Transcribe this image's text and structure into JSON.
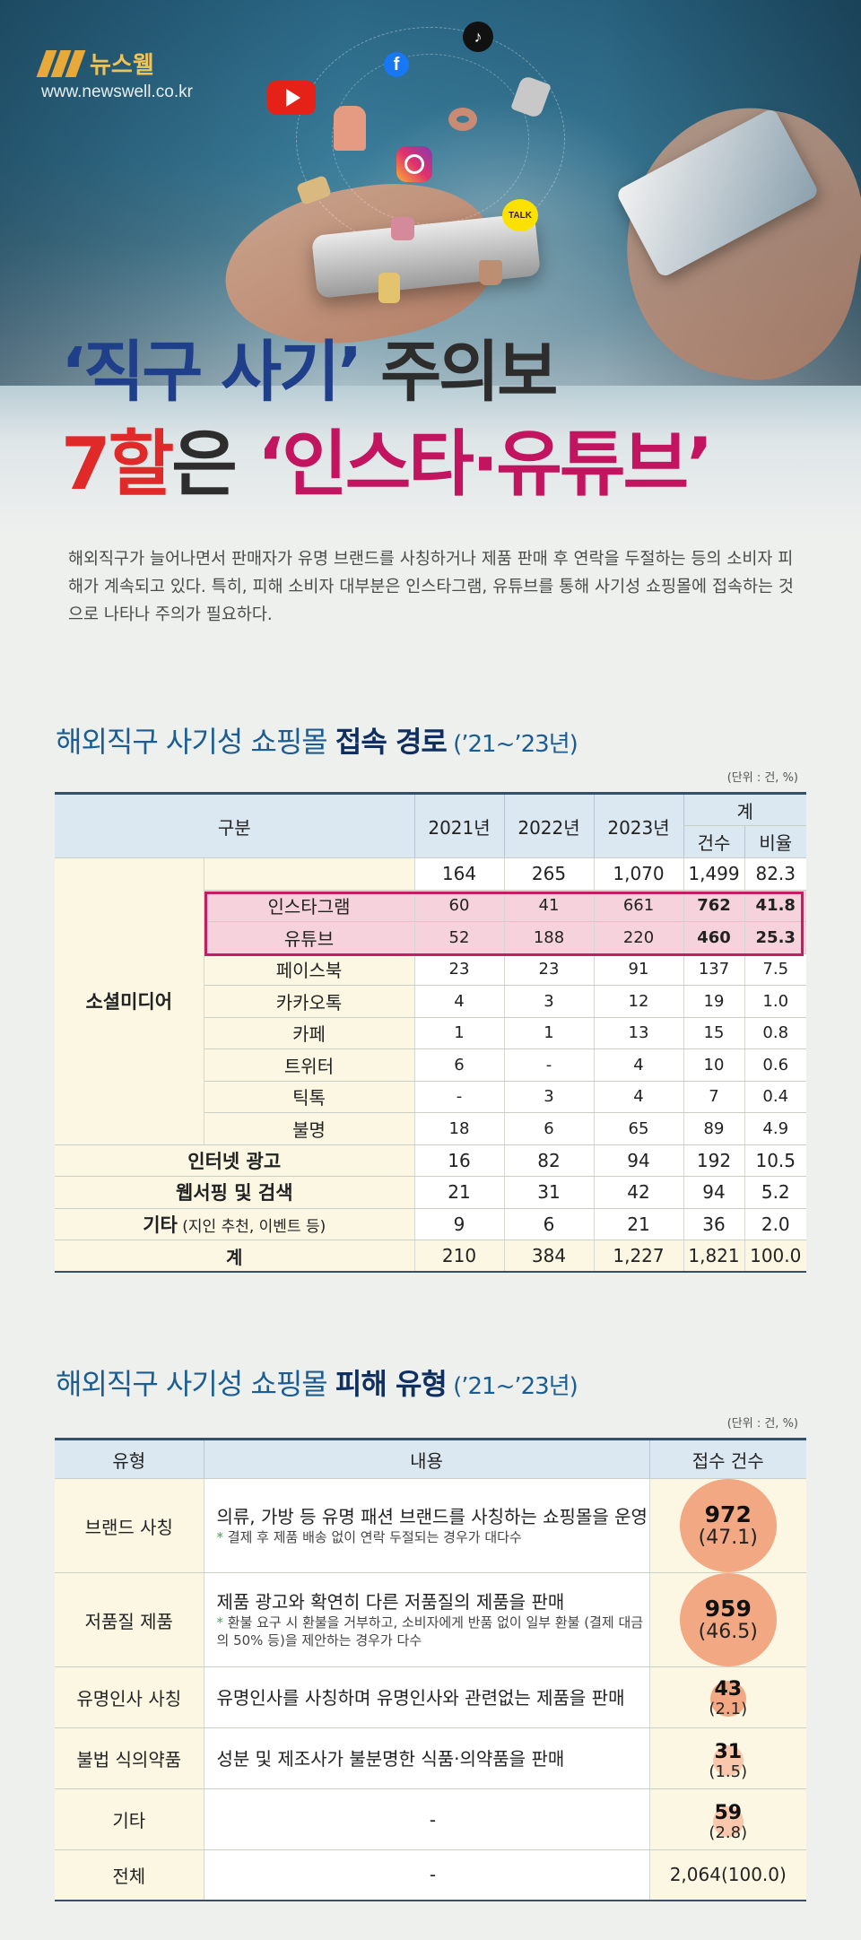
{
  "brand": {
    "name": "뉴스웰",
    "url": "www.newswell.co.kr"
  },
  "hero_icons": [
    "youtube-icon",
    "facebook-icon",
    "tiktok-icon",
    "instagram-icon",
    "kakaotalk-icon"
  ],
  "kakao_label": "TALK",
  "headline": {
    "line1_a": "‘직구 사기’",
    "line1_b": " 주의보",
    "line2_a": "7할",
    "line2_b": "은 ",
    "line2_c": "‘인스타·유튜브’"
  },
  "intro": "해외직구가 늘어나면서 판매자가 유명 브랜드를 사칭하거나 제품 판매 후 연락을 두절하는 등의 소비자 피해가 계속되고 있다. 특히, 피해 소비자 대부분은 인스타그램, 유튜브를 통해 사기성 쇼핑몰에 접속하는 것으로 나타나 주의가 필요하다.",
  "table1": {
    "title_a": "해외직구 사기성 쇼핑몰 ",
    "title_b": "접속 경로",
    "title_c": " (’21~’23년)",
    "unit": "(단위 : 건, %)",
    "headers": {
      "category": "구분",
      "y2021": "2021년",
      "y2022": "2022년",
      "y2023": "2023년",
      "total": "계",
      "count": "건수",
      "ratio": "비율"
    },
    "social_label": "소셜미디어",
    "social_total": [
      "164",
      "265",
      "1,070",
      "1,499",
      "82.3"
    ],
    "social_rows": [
      {
        "name": "인스타그램",
        "values": [
          "60",
          "41",
          "661",
          "762",
          "41.8"
        ]
      },
      {
        "name": "유튜브",
        "values": [
          "52",
          "188",
          "220",
          "460",
          "25.3"
        ]
      },
      {
        "name": "페이스북",
        "values": [
          "23",
          "23",
          "91",
          "137",
          "7.5"
        ]
      },
      {
        "name": "카카오톡",
        "values": [
          "4",
          "3",
          "12",
          "19",
          "1.0"
        ]
      },
      {
        "name": "카페",
        "values": [
          "1",
          "1",
          "13",
          "15",
          "0.8"
        ]
      },
      {
        "name": "트위터",
        "values": [
          "6",
          "-",
          "4",
          "10",
          "0.6"
        ]
      },
      {
        "name": "틱톡",
        "values": [
          "-",
          "3",
          "4",
          "7",
          "0.4"
        ]
      },
      {
        "name": "불명",
        "values": [
          "18",
          "6",
          "65",
          "89",
          "4.9"
        ]
      }
    ],
    "other_rows": [
      {
        "name": "인터넷 광고",
        "note": "",
        "values": [
          "16",
          "82",
          "94",
          "192",
          "10.5"
        ]
      },
      {
        "name": "웹서핑 및 검색",
        "note": "",
        "values": [
          "21",
          "31",
          "42",
          "94",
          "5.2"
        ]
      },
      {
        "name": "기타",
        "note": " (지인 추천, 이벤트 등)",
        "values": [
          "9",
          "6",
          "21",
          "36",
          "2.0"
        ]
      }
    ],
    "total_row": {
      "name": "계",
      "values": [
        "210",
        "384",
        "1,227",
        "1,821",
        "100.0"
      ]
    }
  },
  "table2": {
    "title_a": "해외직구 사기성 쇼핑몰 ",
    "title_b": "피해 유형",
    "title_c": " (’21~’23년)",
    "unit": "(단위 : 건, %)",
    "headers": {
      "type": "유형",
      "content": "내용",
      "count": "접수 건수"
    },
    "rows": [
      {
        "type": "브랜드 사칭",
        "content": "의류, 가방 등 유명 패션 브랜드를 사칭하는 쇼핑몰을 운영",
        "note_star": "*",
        "note": " 결제 후 제품 배송 없이 연락 두절되는 경우가 대다수",
        "count": "972",
        "pct": "(47.1)"
      },
      {
        "type": "저품질 제품",
        "content": "제품 광고와 확연히 다른 저품질의 제품을 판매",
        "note_star": "*",
        "note": " 환불 요구 시 환불을 거부하고, 소비자에게 반품 없이 일부 환불 (결제 대금의 50% 등)을 제안하는 경우가 다수",
        "count": "959",
        "pct": "(46.5)"
      },
      {
        "type": "유명인사 사칭",
        "content": "유명인사를 사칭하며 유명인사와 관련없는 제품을 판매",
        "count": "43",
        "pct": "(2.1)"
      },
      {
        "type": "불법 식의약품",
        "content": "성분 및 제조사가 불분명한 식품·의약품을 판매",
        "count": "31",
        "pct": "(1.5)"
      },
      {
        "type": "기타",
        "content": "-",
        "count": "59",
        "pct": "(2.8)"
      }
    ],
    "total": {
      "type": "전체",
      "content": "-",
      "count": "2,064(100.0)"
    }
  }
}
